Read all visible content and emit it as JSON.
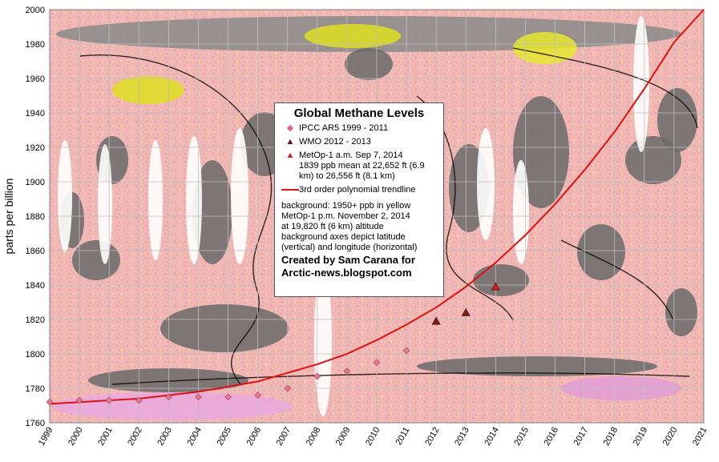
{
  "chart_data": {
    "type": "scatter",
    "title": "Global Methane Levels",
    "ylabel": "parts per billion",
    "xlim": [
      1999,
      2021
    ],
    "ylim": [
      1760,
      2000
    ],
    "x_ticks": [
      "1999",
      "2000",
      "2001",
      "2002",
      "2003",
      "2004",
      "2005",
      "2006",
      "2007",
      "2008",
      "2009",
      "2010",
      "2011",
      "2012",
      "2013",
      "2014",
      "2015",
      "2016",
      "2017",
      "2018",
      "2019",
      "2020",
      "2021"
    ],
    "y_ticks": [
      "1760",
      "1780",
      "1800",
      "1820",
      "1840",
      "1860",
      "1880",
      "1900",
      "1920",
      "1940",
      "1960",
      "1980",
      "2000"
    ],
    "grid": true,
    "legend_position": "center",
    "series": [
      {
        "name": "IPCC AR5  1999 - 2011",
        "marker": "diamond",
        "color": "#e07a8a",
        "x": [
          1999,
          2000,
          2001,
          2002,
          2003,
          2004,
          2005,
          2006,
          2007,
          2008,
          2009,
          2010,
          2011
        ],
        "y": [
          1772,
          1773,
          1773,
          1773,
          1775,
          1775,
          1775,
          1776,
          1780,
          1787,
          1790,
          1795,
          1802
        ]
      },
      {
        "name": "WMO   2012 - 2013",
        "marker": "triangle",
        "color": "#7a1e1e",
        "x": [
          2012,
          2013
        ],
        "y": [
          1819,
          1824
        ]
      },
      {
        "name": "MetOp-1 a.m. Sep 7, 2014",
        "marker": "triangle",
        "color": "#cc2020",
        "x": [
          2014
        ],
        "y": [
          1839
        ]
      },
      {
        "name": "3rd order polynomial trendline",
        "type": "line",
        "color": "#dd1111",
        "x": [
          1999,
          2000,
          2001,
          2002,
          2003,
          2004,
          2005,
          2006,
          2007,
          2008,
          2009,
          2010,
          2011,
          2012,
          2013,
          2014,
          2015,
          2016,
          2017,
          2018,
          2019,
          2020,
          2021
        ],
        "y": [
          1771,
          1772,
          1773,
          1774,
          1776,
          1778,
          1781,
          1784,
          1789,
          1794,
          1800,
          1808,
          1817,
          1827,
          1839,
          1853,
          1869,
          1887,
          1907,
          1929,
          1954,
          1981,
          2000
        ]
      }
    ]
  },
  "legend": {
    "title": "Global Methane Levels",
    "items": [
      {
        "mark": "◆",
        "color": "#d86a86",
        "text": "IPCC AR5  1999 - 2011"
      },
      {
        "mark": "▲",
        "color": "#6a1010",
        "text": "WMO   2012 - 2013"
      },
      {
        "mark": "▲",
        "color": "#cc2020",
        "text": "MetOp-1 a.m. Sep 7, 2014"
      }
    ],
    "metop_detail": "1839 ppb mean at 22,652 ft (6.9 km) to 26,556 ft (8.1 km)",
    "trend_label": "3rd order polynomial trendline",
    "background_note_1": "background: 1950+ ppb in yellow",
    "background_note_2": "MetOp-1 p.m. November 2, 2014",
    "background_note_3": "at 19,820 ft (6 km) altitude",
    "background_note_4": "background axes depict latitude (vertical) and longitude (horizontal)",
    "credit_1": "Created by Sam Carana for",
    "credit_2": "Arctic-news.blogspot.com"
  }
}
